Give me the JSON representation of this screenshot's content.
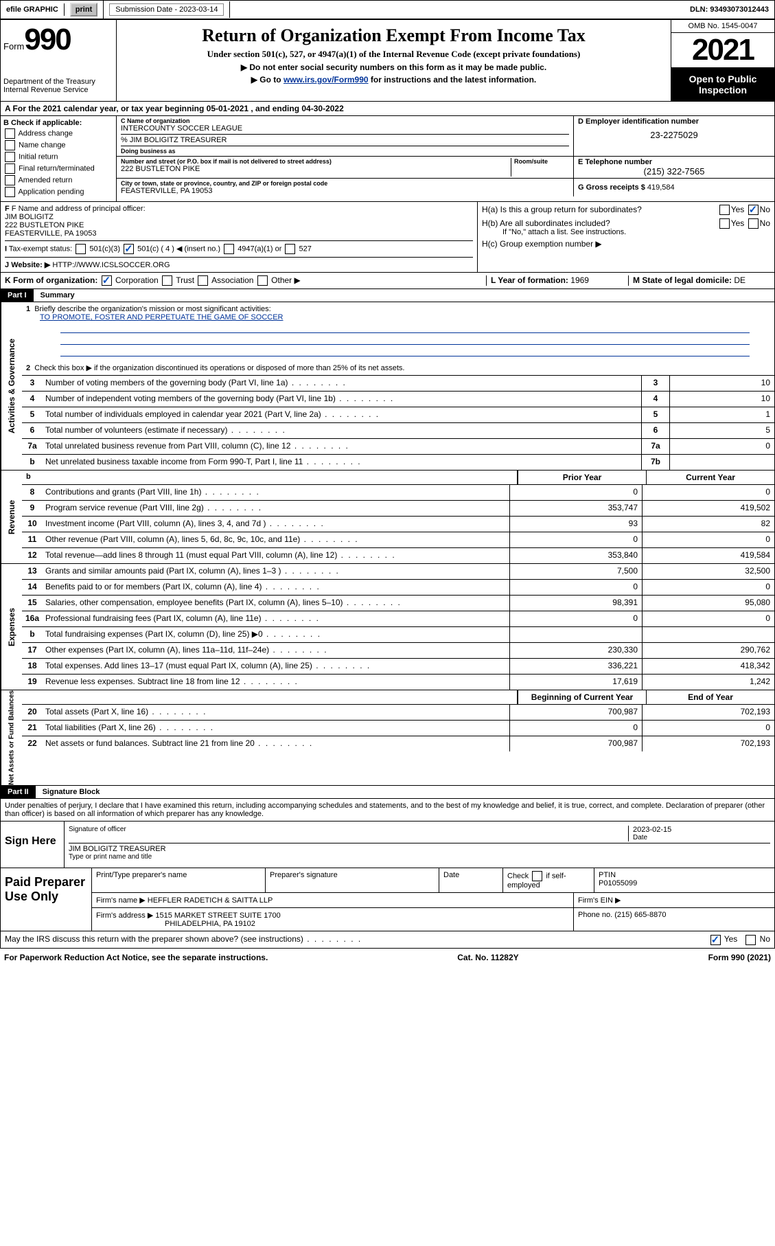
{
  "topbar": {
    "efile_label": "efile GRAPHIC",
    "print_btn": "print",
    "sub_date_label": "Submission Date - 2023-03-14",
    "dln": "DLN: 93493073012443"
  },
  "header": {
    "form_prefix": "Form",
    "form_number": "990",
    "dept": "Department of the Treasury",
    "irs": "Internal Revenue Service",
    "title": "Return of Organization Exempt From Income Tax",
    "subtitle": "Under section 501(c), 527, or 4947(a)(1) of the Internal Revenue Code (except private foundations)",
    "note1": "Do not enter social security numbers on this form as it may be made public.",
    "note2_pre": "Go to ",
    "note2_link": "www.irs.gov/Form990",
    "note2_post": " for instructions and the latest information.",
    "omb": "OMB No. 1545-0047",
    "year": "2021",
    "open_public": "Open to Public Inspection"
  },
  "row_a": "A For the 2021 calendar year, or tax year beginning 05-01-2021  , and ending 04-30-2022",
  "section_b": {
    "title": "B Check if applicable:",
    "items": [
      "Address change",
      "Name change",
      "Initial return",
      "Final return/terminated",
      "Amended return",
      "Application pending"
    ]
  },
  "section_c": {
    "name_label": "C Name of organization",
    "name": "INTERCOUNTY SOCCER LEAGUE",
    "care_of": "% JIM BOLIGITZ TREASURER",
    "dba_label": "Doing business as",
    "street_label": "Number and street (or P.O. box if mail is not delivered to street address)",
    "room_label": "Room/suite",
    "street": "222 BUSTLETON PIKE",
    "city_label": "City or town, state or province, country, and ZIP or foreign postal code",
    "city": "FEASTERVILLE, PA  19053"
  },
  "section_d": {
    "label": "D Employer identification number",
    "ein": "23-2275029"
  },
  "section_e": {
    "label": "E Telephone number",
    "phone": "(215) 322-7565"
  },
  "section_g": {
    "label": "G Gross receipts $",
    "amount": "419,584"
  },
  "section_f": {
    "label": "F Name and address of principal officer:",
    "name": "JIM BOLIGITZ",
    "addr1": "222 BUSTLETON PIKE",
    "addr2": "FEASTERVILLE, PA  19053"
  },
  "section_h": {
    "ha": "H(a)  Is this a group return for subordinates?",
    "hb": "H(b)  Are all subordinates included?",
    "hb_note": "If \"No,\" attach a list. See instructions.",
    "hc": "H(c)  Group exemption number ▶",
    "yes": "Yes",
    "no": "No"
  },
  "section_i": {
    "label": "Tax-exempt status:",
    "opt1": "501(c)(3)",
    "opt2": "501(c) ( 4 ) ◀ (insert no.)",
    "opt3": "4947(a)(1) or",
    "opt4": "527"
  },
  "section_j": {
    "label": "Website: ▶",
    "url": "HTTP://WWW.ICSLSOCCER.ORG"
  },
  "section_k": {
    "label": "K Form of organization:",
    "opts": [
      "Corporation",
      "Trust",
      "Association",
      "Other ▶"
    ]
  },
  "section_l": {
    "label": "L Year of formation:",
    "val": "1969"
  },
  "section_m": {
    "label": "M State of legal domicile:",
    "val": "DE"
  },
  "part1": {
    "header": "Part I",
    "title": "Summary",
    "line1_label": "Briefly describe the organization's mission or most significant activities:",
    "line1_text": "TO PROMOTE, FOSTER AND PERPETUATE THE GAME OF SOCCER",
    "line2": "Check this box ▶       if the organization discontinued its operations or disposed of more than 25% of its net assets.",
    "activities_tab": "Activities & Governance",
    "rows_single": [
      {
        "n": "3",
        "desc": "Number of voting members of the governing body (Part VI, line 1a)",
        "box": "3",
        "val": "10"
      },
      {
        "n": "4",
        "desc": "Number of independent voting members of the governing body (Part VI, line 1b)",
        "box": "4",
        "val": "10"
      },
      {
        "n": "5",
        "desc": "Total number of individuals employed in calendar year 2021 (Part V, line 2a)",
        "box": "5",
        "val": "1"
      },
      {
        "n": "6",
        "desc": "Total number of volunteers (estimate if necessary)",
        "box": "6",
        "val": "5"
      },
      {
        "n": "7a",
        "desc": "Total unrelated business revenue from Part VIII, column (C), line 12",
        "box": "7a",
        "val": "0"
      },
      {
        "n": "b",
        "desc": "Net unrelated business taxable income from Form 990-T, Part I, line 11",
        "box": "7b",
        "val": ""
      }
    ],
    "prior_year": "Prior Year",
    "current_year": "Current Year",
    "revenue_tab": "Revenue",
    "revenue_rows": [
      {
        "n": "8",
        "desc": "Contributions and grants (Part VIII, line 1h)",
        "py": "0",
        "cy": "0"
      },
      {
        "n": "9",
        "desc": "Program service revenue (Part VIII, line 2g)",
        "py": "353,747",
        "cy": "419,502"
      },
      {
        "n": "10",
        "desc": "Investment income (Part VIII, column (A), lines 3, 4, and 7d )",
        "py": "93",
        "cy": "82"
      },
      {
        "n": "11",
        "desc": "Other revenue (Part VIII, column (A), lines 5, 6d, 8c, 9c, 10c, and 11e)",
        "py": "0",
        "cy": "0"
      },
      {
        "n": "12",
        "desc": "Total revenue—add lines 8 through 11 (must equal Part VIII, column (A), line 12)",
        "py": "353,840",
        "cy": "419,584"
      }
    ],
    "expenses_tab": "Expenses",
    "expense_rows": [
      {
        "n": "13",
        "desc": "Grants and similar amounts paid (Part IX, column (A), lines 1–3 )",
        "py": "7,500",
        "cy": "32,500"
      },
      {
        "n": "14",
        "desc": "Benefits paid to or for members (Part IX, column (A), line 4)",
        "py": "0",
        "cy": "0"
      },
      {
        "n": "15",
        "desc": "Salaries, other compensation, employee benefits (Part IX, column (A), lines 5–10)",
        "py": "98,391",
        "cy": "95,080"
      },
      {
        "n": "16a",
        "desc": "Professional fundraising fees (Part IX, column (A), line 11e)",
        "py": "0",
        "cy": "0"
      },
      {
        "n": "b",
        "desc": "Total fundraising expenses (Part IX, column (D), line 25) ▶0",
        "py": "",
        "cy": "",
        "shaded": true
      },
      {
        "n": "17",
        "desc": "Other expenses (Part IX, column (A), lines 11a–11d, 11f–24e)",
        "py": "230,330",
        "cy": "290,762"
      },
      {
        "n": "18",
        "desc": "Total expenses. Add lines 13–17 (must equal Part IX, column (A), line 25)",
        "py": "336,221",
        "cy": "418,342"
      },
      {
        "n": "19",
        "desc": "Revenue less expenses. Subtract line 18 from line 12",
        "py": "17,619",
        "cy": "1,242"
      }
    ],
    "net_tab": "Net Assets or Fund Balances",
    "begin_year": "Beginning of Current Year",
    "end_year": "End of Year",
    "net_rows": [
      {
        "n": "20",
        "desc": "Total assets (Part X, line 16)",
        "py": "700,987",
        "cy": "702,193"
      },
      {
        "n": "21",
        "desc": "Total liabilities (Part X, line 26)",
        "py": "0",
        "cy": "0"
      },
      {
        "n": "22",
        "desc": "Net assets or fund balances. Subtract line 21 from line 20",
        "py": "700,987",
        "cy": "702,193"
      }
    ]
  },
  "part2": {
    "header": "Part II",
    "title": "Signature Block",
    "declaration": "Under penalties of perjury, I declare that I have examined this return, including accompanying schedules and statements, and to the best of my knowledge and belief, it is true, correct, and complete. Declaration of preparer (other than officer) is based on all information of which preparer has any knowledge.",
    "sign_here": "Sign Here",
    "sig_officer": "Signature of officer",
    "date_label": "Date",
    "date_val": "2023-02-15",
    "officer_name": "JIM BOLIGITZ  TREASURER",
    "type_name": "Type or print name and title",
    "paid_preparer": "Paid Preparer Use Only",
    "prep_name_label": "Print/Type preparer's name",
    "prep_sig_label": "Preparer's signature",
    "check_if": "Check",
    "if_self": "if self-employed",
    "ptin_label": "PTIN",
    "ptin": "P01055099",
    "firm_name_label": "Firm's name    ▶",
    "firm_name": "HEFFLER RADETICH & SAITTA LLP",
    "firm_ein_label": "Firm's EIN ▶",
    "firm_addr_label": "Firm's address ▶",
    "firm_addr1": "1515 MARKET STREET SUITE 1700",
    "firm_addr2": "PHILADELPHIA, PA  19102",
    "phone_label": "Phone no.",
    "phone": "(215) 665-8870",
    "discuss": "May the IRS discuss this return with the preparer shown above? (see instructions)",
    "yes": "Yes",
    "no": "No"
  },
  "footer": {
    "paperwork": "For Paperwork Reduction Act Notice, see the separate instructions.",
    "cat": "Cat. No. 11282Y",
    "form": "Form 990 (2021)"
  }
}
